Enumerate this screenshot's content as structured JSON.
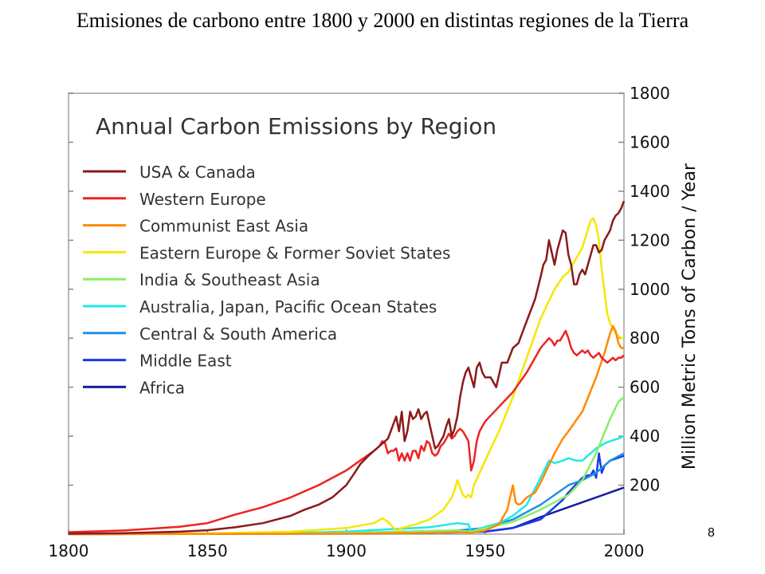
{
  "slide": {
    "title": "Emisiones de carbono entre 1800 y 2000 en distintas regiones de la Tierra",
    "page_number": "8"
  },
  "chart_data": {
    "type": "line",
    "title": "Annual Carbon Emissions by Region",
    "xlabel": "",
    "ylabel": "Million Metric Tons of Carbon / Year",
    "xlim": [
      1800,
      2000
    ],
    "ylim": [
      0,
      1800
    ],
    "x_ticks": [
      "1800",
      "1850",
      "1900",
      "1950",
      "2000"
    ],
    "y_ticks": [
      "200",
      "400",
      "600",
      "800",
      "1000",
      "1200",
      "1400",
      "1600",
      "1800"
    ],
    "legend_position": "top-left",
    "series": [
      {
        "name": "USA & Canada",
        "color": "#8b1a1a",
        "x": [
          1800,
          1820,
          1840,
          1850,
          1860,
          1870,
          1875,
          1880,
          1885,
          1890,
          1895,
          1900,
          1903,
          1905,
          1908,
          1910,
          1912,
          1914,
          1915,
          1916,
          1917,
          1918,
          1919,
          1920,
          1921,
          1922,
          1923,
          1924,
          1925,
          1926,
          1927,
          1928,
          1929,
          1930,
          1931,
          1932,
          1933,
          1934,
          1935,
          1936,
          1937,
          1938,
          1939,
          1940,
          1941,
          1942,
          1943,
          1944,
          1945,
          1946,
          1947,
          1948,
          1949,
          1950,
          1952,
          1954,
          1956,
          1958,
          1960,
          1962,
          1964,
          1966,
          1968,
          1970,
          1971,
          1972,
          1973,
          1974,
          1975,
          1976,
          1977,
          1978,
          1979,
          1980,
          1981,
          1982,
          1983,
          1984,
          1985,
          1986,
          1987,
          1988,
          1989,
          1990,
          1991,
          1992,
          1993,
          1994,
          1995,
          1996,
          1997,
          1998,
          1999,
          2000
        ],
        "values": [
          2,
          4,
          10,
          16,
          28,
          45,
          60,
          75,
          100,
          120,
          150,
          200,
          250,
          285,
          320,
          340,
          360,
          380,
          390,
          420,
          450,
          480,
          420,
          500,
          380,
          420,
          500,
          470,
          480,
          510,
          470,
          490,
          500,
          450,
          400,
          350,
          360,
          380,
          400,
          440,
          470,
          400,
          430,
          480,
          560,
          620,
          660,
          680,
          640,
          600,
          680,
          700,
          660,
          640,
          640,
          600,
          700,
          700,
          760,
          780,
          840,
          900,
          960,
          1050,
          1100,
          1120,
          1200,
          1150,
          1100,
          1160,
          1200,
          1240,
          1230,
          1140,
          1100,
          1020,
          1020,
          1060,
          1080,
          1060,
          1100,
          1140,
          1180,
          1180,
          1150,
          1160,
          1200,
          1220,
          1240,
          1280,
          1300,
          1310,
          1330,
          1360
        ]
      },
      {
        "name": "Western Europe",
        "color": "#ee2222",
        "x": [
          1800,
          1820,
          1840,
          1850,
          1860,
          1870,
          1880,
          1890,
          1900,
          1905,
          1910,
          1912,
          1913,
          1914,
          1915,
          1916,
          1917,
          1918,
          1919,
          1920,
          1921,
          1922,
          1923,
          1924,
          1925,
          1926,
          1927,
          1928,
          1929,
          1930,
          1931,
          1932,
          1933,
          1934,
          1935,
          1936,
          1937,
          1938,
          1939,
          1940,
          1941,
          1942,
          1943,
          1944,
          1945,
          1946,
          1947,
          1948,
          1949,
          1950,
          1955,
          1960,
          1965,
          1970,
          1973,
          1974,
          1975,
          1976,
          1977,
          1978,
          1979,
          1980,
          1981,
          1982,
          1983,
          1984,
          1985,
          1986,
          1987,
          1988,
          1989,
          1990,
          1991,
          1992,
          1993,
          1994,
          1995,
          1996,
          1997,
          1998,
          1999,
          2000
        ],
        "values": [
          8,
          15,
          30,
          45,
          80,
          110,
          150,
          200,
          260,
          300,
          340,
          360,
          380,
          370,
          330,
          340,
          340,
          350,
          300,
          330,
          300,
          330,
          300,
          340,
          340,
          310,
          360,
          340,
          380,
          370,
          330,
          320,
          330,
          360,
          370,
          390,
          410,
          390,
          400,
          420,
          430,
          420,
          400,
          380,
          260,
          300,
          380,
          420,
          440,
          460,
          520,
          580,
          660,
          760,
          800,
          790,
          770,
          790,
          790,
          810,
          830,
          800,
          760,
          740,
          730,
          740,
          750,
          740,
          750,
          730,
          720,
          730,
          740,
          720,
          710,
          700,
          710,
          720,
          710,
          720,
          720,
          730
        ]
      },
      {
        "name": "Communist East Asia",
        "color": "#ff8a00",
        "x": [
          1800,
          1900,
          1930,
          1940,
          1945,
          1950,
          1955,
          1958,
          1959,
          1960,
          1961,
          1962,
          1963,
          1965,
          1968,
          1970,
          1975,
          1978,
          1980,
          1985,
          1990,
          1993,
          1995,
          1996,
          1997,
          1998,
          1999,
          2000
        ],
        "values": [
          0,
          2,
          5,
          8,
          5,
          15,
          40,
          100,
          150,
          200,
          130,
          120,
          125,
          150,
          170,
          210,
          330,
          390,
          420,
          500,
          640,
          740,
          820,
          850,
          830,
          780,
          760,
          760
        ]
      },
      {
        "name": "Eastern Europe & Former Soviet States",
        "color": "#f4e800",
        "x": [
          1800,
          1850,
          1880,
          1900,
          1910,
          1913,
          1915,
          1918,
          1919,
          1920,
          1925,
          1930,
          1935,
          1938,
          1939,
          1940,
          1941,
          1942,
          1943,
          1944,
          1945,
          1946,
          1950,
          1955,
          1960,
          1965,
          1970,
          1975,
          1978,
          1980,
          1985,
          1988,
          1989,
          1990,
          1991,
          1992,
          1993,
          1994,
          1995,
          1996,
          1997,
          1998,
          1999,
          2000
        ],
        "values": [
          1,
          3,
          10,
          25,
          45,
          65,
          50,
          15,
          20,
          25,
          40,
          60,
          100,
          150,
          180,
          220,
          190,
          160,
          150,
          160,
          150,
          200,
          300,
          420,
          560,
          720,
          880,
          1000,
          1050,
          1070,
          1170,
          1280,
          1290,
          1260,
          1200,
          1080,
          990,
          900,
          860,
          840,
          820,
          810,
          800,
          800
        ]
      },
      {
        "name": "India & Southeast Asia",
        "color": "#88ee66",
        "x": [
          1800,
          1900,
          1920,
          1940,
          1945,
          1950,
          1960,
          1970,
          1980,
          1985,
          1990,
          1995,
          1998,
          2000
        ],
        "values": [
          0,
          5,
          10,
          15,
          10,
          25,
          50,
          100,
          160,
          220,
          330,
          470,
          540,
          560
        ]
      },
      {
        "name": "Australia, Japan, Pacific Ocean States",
        "color": "#22e8e8",
        "x": [
          1800,
          1880,
          1900,
          1915,
          1920,
          1930,
          1940,
          1944,
          1945,
          1946,
          1950,
          1955,
          1960,
          1965,
          1970,
          1973,
          1975,
          1978,
          1980,
          1983,
          1985,
          1988,
          1990,
          1993,
          1995,
          1998,
          2000
        ],
        "values": [
          0,
          5,
          10,
          20,
          22,
          28,
          45,
          40,
          10,
          15,
          30,
          45,
          75,
          120,
          230,
          300,
          290,
          300,
          310,
          300,
          300,
          330,
          350,
          370,
          380,
          390,
          400
        ]
      },
      {
        "name": "Central & South America",
        "color": "#1e90e8",
        "x": [
          1800,
          1900,
          1920,
          1940,
          1950,
          1960,
          1970,
          1980,
          1985,
          1990,
          1995,
          2000
        ],
        "values": [
          0,
          5,
          10,
          15,
          25,
          60,
          120,
          200,
          220,
          250,
          300,
          330
        ]
      },
      {
        "name": "Middle East",
        "color": "#1a3ae6",
        "x": [
          1800,
          1930,
          1945,
          1950,
          1960,
          1970,
          1975,
          1978,
          1980,
          1985,
          1987,
          1988,
          1989,
          1990,
          1991,
          1992,
          1993,
          1995,
          2000
        ],
        "values": [
          0,
          5,
          8,
          10,
          25,
          60,
          110,
          140,
          170,
          230,
          240,
          240,
          260,
          230,
          330,
          250,
          280,
          300,
          320
        ]
      },
      {
        "name": "Africa",
        "color": "#16209a",
        "x": [
          1800,
          1900,
          1930,
          1950,
          1960,
          1970,
          1980,
          1990,
          2000
        ],
        "values": [
          0,
          3,
          5,
          10,
          25,
          70,
          110,
          150,
          190
        ]
      }
    ]
  }
}
